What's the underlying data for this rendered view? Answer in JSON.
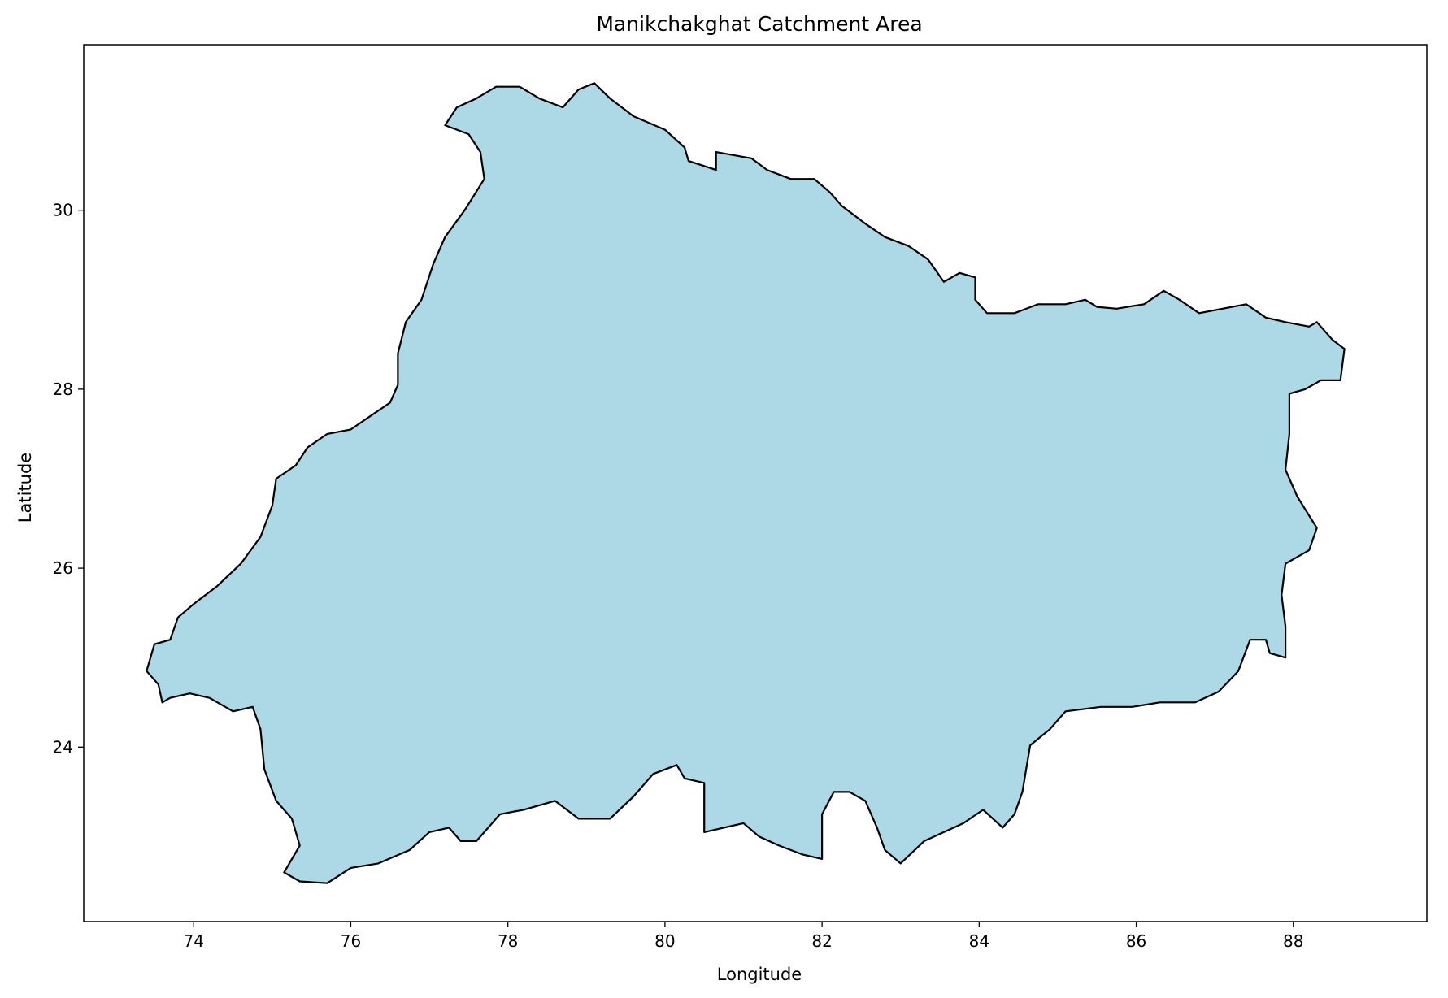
{
  "chart_data": {
    "type": "map",
    "title": "Manikchakghat Catchment Area",
    "xlabel": "Longitude",
    "ylabel": "Latitude",
    "xlim": [
      72.6,
      89.7
    ],
    "ylim": [
      22.05,
      31.85
    ],
    "xticks": [
      74,
      76,
      78,
      80,
      82,
      84,
      86,
      88
    ],
    "yticks": [
      24,
      26,
      28,
      30
    ],
    "grid": false,
    "fill_color": "#add8e6",
    "edge_color": "#000000",
    "region": {
      "name": "Manikchakghat Catchment Area",
      "boundary": [
        [
          77.2,
          30.95
        ],
        [
          77.35,
          31.15
        ],
        [
          77.6,
          31.25
        ],
        [
          77.85,
          31.38
        ],
        [
          78.15,
          31.38
        ],
        [
          78.4,
          31.25
        ],
        [
          78.7,
          31.15
        ],
        [
          78.9,
          31.35
        ],
        [
          79.1,
          31.42
        ],
        [
          79.3,
          31.25
        ],
        [
          79.6,
          31.05
        ],
        [
          80.0,
          30.9
        ],
        [
          80.25,
          30.7
        ],
        [
          80.3,
          30.55
        ],
        [
          80.65,
          30.45
        ],
        [
          80.65,
          30.65
        ],
        [
          81.1,
          30.58
        ],
        [
          81.3,
          30.45
        ],
        [
          81.6,
          30.35
        ],
        [
          81.9,
          30.35
        ],
        [
          82.1,
          30.2
        ],
        [
          82.25,
          30.05
        ],
        [
          82.55,
          29.85
        ],
        [
          82.8,
          29.7
        ],
        [
          83.1,
          29.6
        ],
        [
          83.35,
          29.45
        ],
        [
          83.55,
          29.2
        ],
        [
          83.75,
          29.3
        ],
        [
          83.95,
          29.25
        ],
        [
          83.95,
          29.0
        ],
        [
          84.1,
          28.85
        ],
        [
          84.45,
          28.85
        ],
        [
          84.75,
          28.95
        ],
        [
          85.1,
          28.95
        ],
        [
          85.35,
          29.0
        ],
        [
          85.5,
          28.92
        ],
        [
          85.75,
          28.9
        ],
        [
          86.1,
          28.95
        ],
        [
          86.35,
          29.1
        ],
        [
          86.55,
          29.0
        ],
        [
          86.8,
          28.85
        ],
        [
          87.1,
          28.9
        ],
        [
          87.4,
          28.95
        ],
        [
          87.65,
          28.8
        ],
        [
          87.9,
          28.75
        ],
        [
          88.2,
          28.7
        ],
        [
          88.3,
          28.75
        ],
        [
          88.5,
          28.55
        ],
        [
          88.65,
          28.45
        ],
        [
          88.6,
          28.1
        ],
        [
          88.35,
          28.1
        ],
        [
          88.15,
          28.0
        ],
        [
          87.95,
          27.95
        ],
        [
          87.95,
          27.5
        ],
        [
          87.9,
          27.1
        ],
        [
          88.05,
          26.8
        ],
        [
          88.3,
          26.45
        ],
        [
          88.2,
          26.2
        ],
        [
          87.9,
          26.05
        ],
        [
          87.85,
          25.7
        ],
        [
          87.9,
          25.35
        ],
        [
          87.9,
          25.0
        ],
        [
          87.7,
          25.05
        ],
        [
          87.65,
          25.2
        ],
        [
          87.45,
          25.2
        ],
        [
          87.3,
          24.85
        ],
        [
          87.05,
          24.62
        ],
        [
          86.75,
          24.5
        ],
        [
          86.3,
          24.5
        ],
        [
          85.95,
          24.45
        ],
        [
          85.55,
          24.45
        ],
        [
          85.1,
          24.4
        ],
        [
          84.9,
          24.2
        ],
        [
          84.65,
          24.02
        ],
        [
          84.55,
          23.5
        ],
        [
          84.45,
          23.25
        ],
        [
          84.3,
          23.1
        ],
        [
          84.05,
          23.3
        ],
        [
          83.8,
          23.15
        ],
        [
          83.55,
          23.05
        ],
        [
          83.3,
          22.95
        ],
        [
          83.0,
          22.7
        ],
        [
          82.8,
          22.85
        ],
        [
          82.7,
          23.1
        ],
        [
          82.55,
          23.4
        ],
        [
          82.35,
          23.5
        ],
        [
          82.15,
          23.5
        ],
        [
          82.0,
          23.25
        ],
        [
          82.0,
          22.75
        ],
        [
          81.75,
          22.8
        ],
        [
          81.45,
          22.9
        ],
        [
          81.2,
          23.0
        ],
        [
          81.0,
          23.15
        ],
        [
          80.75,
          23.1
        ],
        [
          80.5,
          23.05
        ],
        [
          80.5,
          23.6
        ],
        [
          80.25,
          23.65
        ],
        [
          80.15,
          23.8
        ],
        [
          79.85,
          23.7
        ],
        [
          79.6,
          23.45
        ],
        [
          79.3,
          23.2
        ],
        [
          78.9,
          23.2
        ],
        [
          78.6,
          23.4
        ],
        [
          78.2,
          23.3
        ],
        [
          77.9,
          23.25
        ],
        [
          77.75,
          23.1
        ],
        [
          77.6,
          22.95
        ],
        [
          77.4,
          22.95
        ],
        [
          77.25,
          23.1
        ],
        [
          77.0,
          23.05
        ],
        [
          76.75,
          22.85
        ],
        [
          76.35,
          22.7
        ],
        [
          76.0,
          22.65
        ],
        [
          75.7,
          22.48
        ],
        [
          75.35,
          22.5
        ],
        [
          75.15,
          22.6
        ],
        [
          75.35,
          22.9
        ],
        [
          75.25,
          23.2
        ],
        [
          75.05,
          23.4
        ],
        [
          74.9,
          23.75
        ],
        [
          74.85,
          24.2
        ],
        [
          74.75,
          24.45
        ],
        [
          74.5,
          24.4
        ],
        [
          74.2,
          24.55
        ],
        [
          73.95,
          24.6
        ],
        [
          73.7,
          24.55
        ],
        [
          73.6,
          24.5
        ],
        [
          73.55,
          24.7
        ],
        [
          73.4,
          24.85
        ],
        [
          73.5,
          25.15
        ],
        [
          73.7,
          25.2
        ],
        [
          73.8,
          25.45
        ],
        [
          74.0,
          25.6
        ],
        [
          74.3,
          25.8
        ],
        [
          74.6,
          26.05
        ],
        [
          74.85,
          26.35
        ],
        [
          75.0,
          26.7
        ],
        [
          75.05,
          27.0
        ],
        [
          75.3,
          27.15
        ],
        [
          75.45,
          27.35
        ],
        [
          75.7,
          27.5
        ],
        [
          76.0,
          27.55
        ],
        [
          76.25,
          27.7
        ],
        [
          76.5,
          27.85
        ],
        [
          76.6,
          28.05
        ],
        [
          76.6,
          28.4
        ],
        [
          76.7,
          28.75
        ],
        [
          76.9,
          29.0
        ],
        [
          77.05,
          29.4
        ],
        [
          77.2,
          29.7
        ],
        [
          77.45,
          30.0
        ],
        [
          77.7,
          30.35
        ],
        [
          77.65,
          30.65
        ],
        [
          77.5,
          30.85
        ],
        [
          77.2,
          30.95
        ]
      ]
    }
  }
}
